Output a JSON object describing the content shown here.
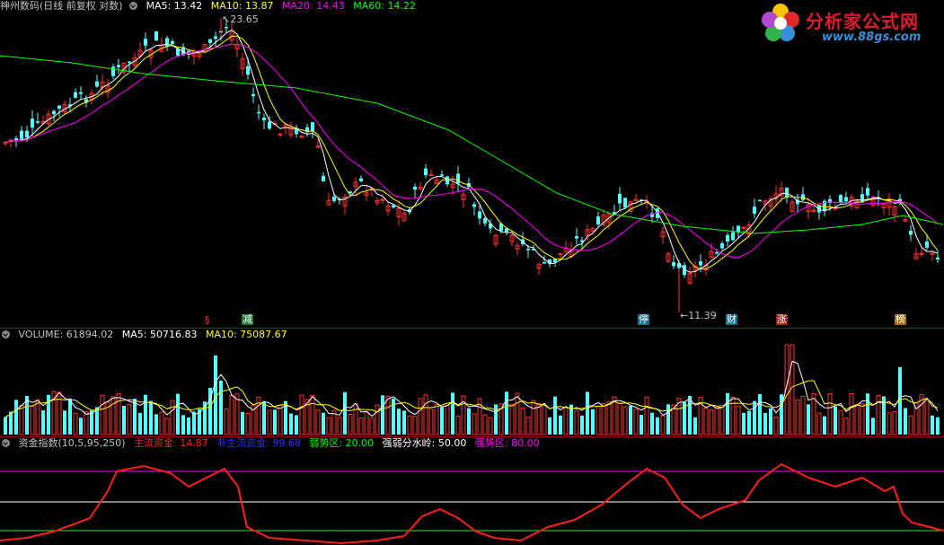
{
  "price_panel": {
    "title": "神州数码(日线 前复权 对数)",
    "ma_labels": [
      {
        "text": "MA5: 13.42",
        "color": "#ffffff"
      },
      {
        "text": "MA10: 13.87",
        "color": "#ffff00"
      },
      {
        "text": "MA20: 14.43",
        "color": "#ff00ff"
      },
      {
        "text": "MA60: 14.22",
        "color": "#00ff00"
      }
    ],
    "high_label": "23.65",
    "low_label": "11.39",
    "event_tags": [
      {
        "text": "§",
        "color": "#ff3030",
        "bg": "transparent"
      },
      {
        "text": "减",
        "color": "#ffffff",
        "bg": "#1f7a3a"
      },
      {
        "text": "停",
        "color": "#ffffff",
        "bg": "#1a6e8c"
      },
      {
        "text": "财",
        "color": "#ffffff",
        "bg": "#1a6e8c"
      },
      {
        "text": "涨",
        "color": "#ffffff",
        "bg": "#a01f1f"
      },
      {
        "text": "榜",
        "color": "#ffffff",
        "bg": "#a06a1f"
      }
    ],
    "up_color": "#ff3232",
    "down_color": "#54ffff"
  },
  "volume_panel": {
    "labels": [
      {
        "text": "VOLUME: 61894.02",
        "color": "#c0c0c0"
      },
      {
        "text": "MA5: 50716.83",
        "color": "#ffffff"
      },
      {
        "text": "MA10: 75087.67",
        "color": "#ffff00"
      }
    ]
  },
  "fund_panel": {
    "labels": [
      {
        "text": "资金指数(10,5,95,250)",
        "color": "#c0c0c0"
      },
      {
        "text": "主流资金: 14.87",
        "color": "#ff2020"
      },
      {
        "text": "非主流资金: 99.68",
        "color": "#3030ff"
      },
      {
        "text": "弱势区: 20.00",
        "color": "#00ff00"
      },
      {
        "text": "强弱分水岭: 50.00",
        "color": "#ffffff"
      },
      {
        "text": "强势区: 80.00",
        "color": "#ff00ff"
      }
    ]
  },
  "logo": {
    "brand": "分析家公式网",
    "url": "www.88gs.com"
  }
}
